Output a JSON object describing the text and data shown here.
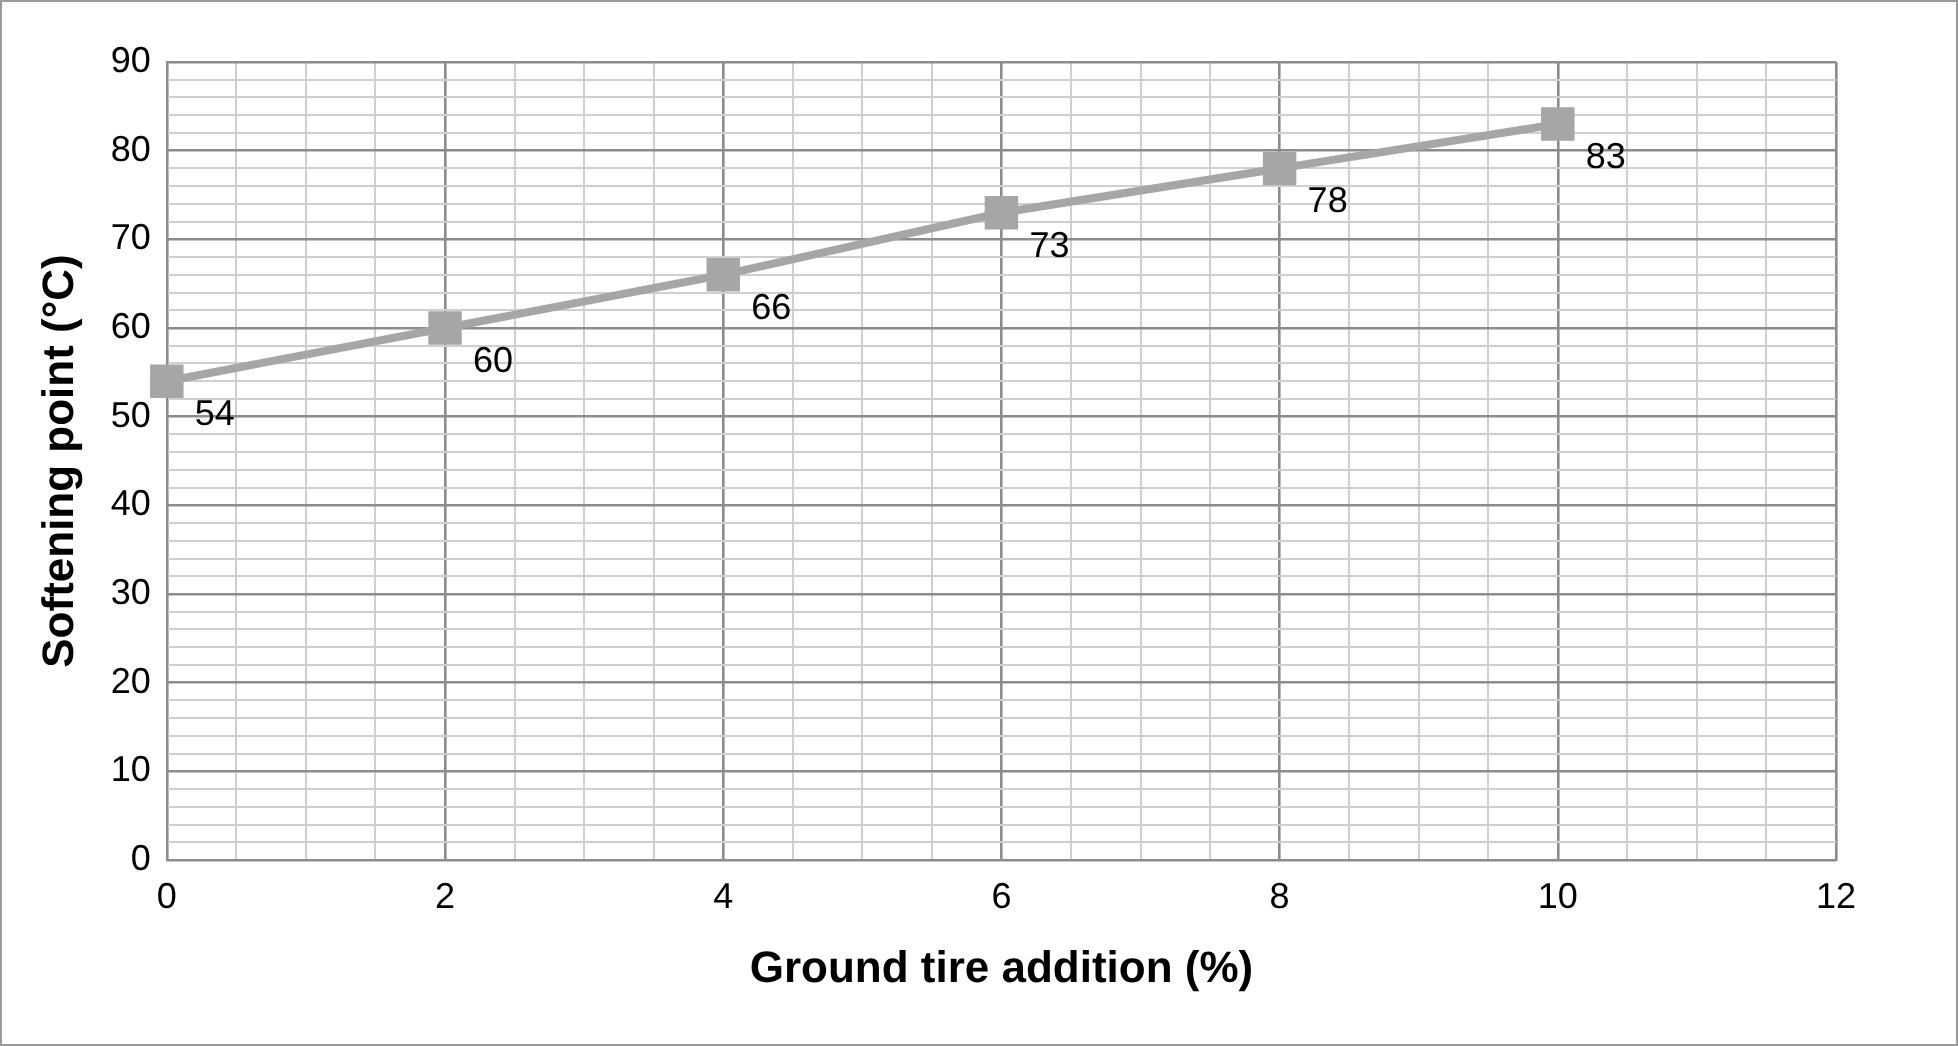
{
  "chart_data": {
    "type": "line",
    "xlabel": "Ground tire addition (%)",
    "ylabel": "Softening point (°C)",
    "x": [
      0,
      2,
      4,
      6,
      8,
      10
    ],
    "series": [
      {
        "color": "#a6a6a6",
        "values": [
          54,
          60,
          66,
          73,
          78,
          83
        ]
      }
    ],
    "xlim": [
      0,
      12
    ],
    "xticks": [
      0,
      {
        "value": 0.5,
        "label": null
      },
      {
        "value": 1,
        "label": null
      },
      {
        "value": 1.5,
        "label": null
      },
      2,
      {
        "value": 2.5,
        "label": null
      },
      {
        "value": 3,
        "label": null
      },
      {
        "value": 3.5,
        "label": null
      },
      4,
      {
        "value": 4.5,
        "label": null
      },
      {
        "value": 5,
        "label": null
      },
      {
        "value": 5.5,
        "label": null
      },
      6,
      {
        "value": 6.5,
        "label": null
      },
      {
        "value": 7,
        "label": null
      },
      {
        "value": 7.5,
        "label": null
      },
      8,
      {
        "value": 8.5,
        "label": null
      },
      {
        "value": 9,
        "label": null
      },
      {
        "value": 9.5,
        "label": null
      },
      10,
      {
        "value": 10.5,
        "label": null
      },
      {
        "value": 11,
        "label": null
      },
      {
        "value": 11.5,
        "label": null
      },
      12
    ],
    "ylim": [
      0,
      90
    ],
    "yticks": [
      0,
      {
        "value": 2,
        "label": null
      },
      {
        "value": 4,
        "label": null
      },
      {
        "value": 6,
        "label": null
      },
      {
        "value": 8,
        "label": null
      },
      10,
      {
        "value": 12,
        "label": null
      },
      {
        "value": 14,
        "label": null
      },
      {
        "value": 16,
        "label": null
      },
      {
        "value": 18,
        "label": null
      },
      20,
      {
        "value": 22,
        "label": null
      },
      {
        "value": 24,
        "label": null
      },
      {
        "value": 26,
        "label": null
      },
      {
        "value": 28,
        "label": null
      },
      30,
      {
        "value": 32,
        "label": null
      },
      {
        "value": 34,
        "label": null
      },
      {
        "value": 36,
        "label": null
      },
      {
        "value": 38,
        "label": null
      },
      40,
      {
        "value": 42,
        "label": null
      },
      {
        "value": 44,
        "label": null
      },
      {
        "value": 46,
        "label": null
      },
      {
        "value": 48,
        "label": null
      },
      50,
      {
        "value": 52,
        "label": null
      },
      {
        "value": 54,
        "label": null
      },
      {
        "value": 56,
        "label": null
      },
      {
        "value": 58,
        "label": null
      },
      60,
      {
        "value": 62,
        "label": null
      },
      {
        "value": 64,
        "label": null
      },
      {
        "value": 66,
        "label": null
      },
      {
        "value": 68,
        "label": null
      },
      70,
      {
        "value": 72,
        "label": null
      },
      {
        "value": 74,
        "label": null
      },
      {
        "value": 76,
        "label": null
      },
      {
        "value": 78,
        "label": null
      },
      80,
      {
        "value": 82,
        "label": null
      },
      {
        "value": 84,
        "label": null
      },
      {
        "value": 86,
        "label": null
      },
      {
        "value": 88,
        "label": null
      },
      90
    ],
    "grid": true,
    "legend": false,
    "marker": "square",
    "line_style": "solid",
    "data_labels": true
  }
}
